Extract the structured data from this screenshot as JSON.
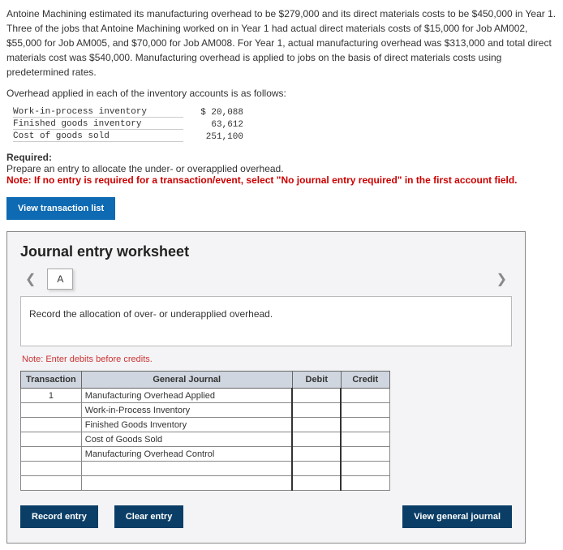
{
  "problem": {
    "paragraph": "Antoine Machining estimated its manufacturing overhead to be $279,000 and its direct materials costs to be $450,000 in Year 1. Three of the jobs that Antoine Machining worked on in Year 1 had actual direct materials costs of $15,000 for Job AM002, $55,000 for Job AM005, and $70,000 for Job AM008. For Year 1, actual manufacturing overhead was $313,000 and total direct materials cost was $540,000. Manufacturing overhead is applied to jobs on the basis of direct materials costs using predetermined rates.",
    "oh_heading": "Overhead applied in each of the inventory accounts is as follows:",
    "oh_rows": [
      {
        "label": "Work-in-process inventory",
        "value": "$ 20,088"
      },
      {
        "label": "Finished goods inventory",
        "value": "63,612"
      },
      {
        "label": "Cost of goods sold",
        "value": "251,100"
      }
    ],
    "required_heading": "Required:",
    "required_text": "Prepare an entry to allocate the under- or overapplied overhead.",
    "note_red": "Note: If no entry is required for a transaction/event, select \"No journal entry required\" in the first account field."
  },
  "buttons": {
    "view_list": "View transaction list",
    "record": "Record entry",
    "clear": "Clear entry",
    "view_gj": "View general journal"
  },
  "worksheet": {
    "title": "Journal entry worksheet",
    "tab_label": "A",
    "instruction": "Record the allocation of over- or underapplied overhead.",
    "credits_note": "Note: Enter debits before credits.",
    "headers": {
      "txn": "Transaction",
      "gj": "General Journal",
      "debit": "Debit",
      "credit": "Credit"
    },
    "rows": [
      {
        "txn": "1",
        "account": "Manufacturing Overhead Applied",
        "debit": "",
        "credit": ""
      },
      {
        "txn": "",
        "account": "Work-in-Process Inventory",
        "debit": "",
        "credit": ""
      },
      {
        "txn": "",
        "account": "Finished Goods Inventory",
        "debit": "",
        "credit": ""
      },
      {
        "txn": "",
        "account": "Cost of Goods Sold",
        "debit": "",
        "credit": ""
      },
      {
        "txn": "",
        "account": "Manufacturing Overhead Control",
        "debit": "",
        "credit": ""
      },
      {
        "txn": "",
        "account": "",
        "debit": "",
        "credit": ""
      },
      {
        "txn": "",
        "account": "",
        "debit": "",
        "credit": ""
      }
    ]
  }
}
